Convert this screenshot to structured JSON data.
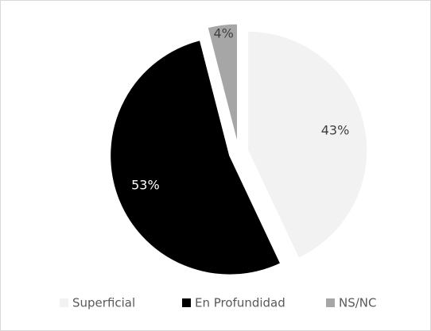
{
  "chart_data": {
    "type": "pie",
    "categories": [
      "Superficial",
      "En Profundidad",
      "NS/NC"
    ],
    "values": [
      43,
      53,
      4
    ],
    "value_labels": [
      "43%",
      "53%",
      "4%"
    ],
    "colors": [
      "#f2f2f2",
      "#000000",
      "#a6a6a6"
    ],
    "legend": "bottom"
  }
}
